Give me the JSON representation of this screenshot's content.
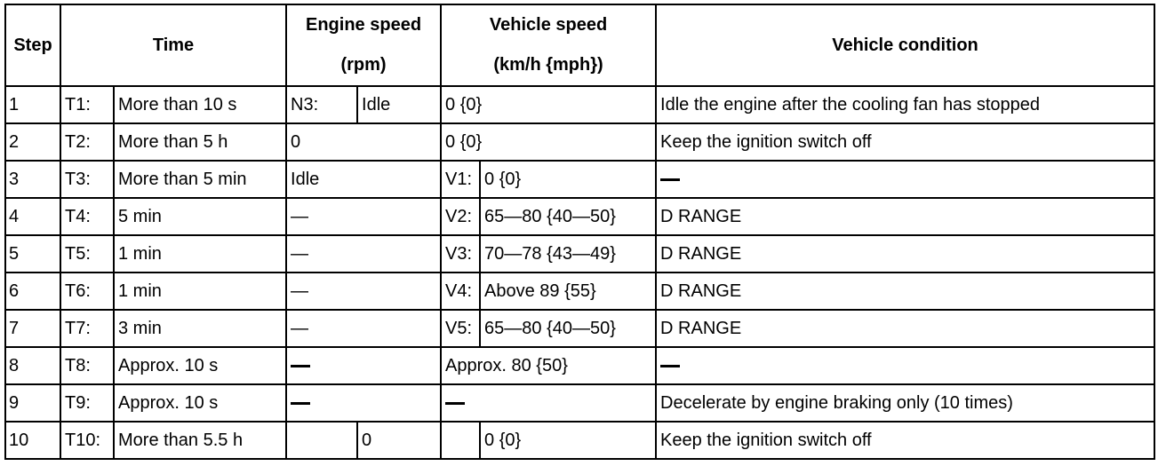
{
  "headers": {
    "step": "Step",
    "time": "Time",
    "engine_speed_line1": "Engine speed",
    "engine_speed_line2": "(rpm)",
    "vehicle_speed_line1": "Vehicle speed",
    "vehicle_speed_line2": "(km/h {mph})",
    "vehicle_condition": "Vehicle condition"
  },
  "em_dash": "—",
  "rows": [
    {
      "step": "1",
      "time_label": "T1:",
      "time_value": "More than 10 s",
      "engine_label": "N3:",
      "engine_value": "Idle",
      "vehicle_value": "0 {0}",
      "condition": "Idle the engine after the cooling fan has stopped"
    },
    {
      "step": "2",
      "time_label": "T2:",
      "time_value": "More than 5 h",
      "engine_value": "0",
      "vehicle_value": "0 {0}",
      "condition": "Keep the ignition switch off"
    },
    {
      "step": "3",
      "time_label": "T3:",
      "time_value": "More than 5 min",
      "engine_value": "Idle",
      "vehicle_label": "V1:",
      "vehicle_value": "0 {0}",
      "condition": "—"
    },
    {
      "step": "4",
      "time_label": "T4:",
      "time_value": "5 min",
      "engine_value": "—",
      "vehicle_label": "V2:",
      "vehicle_value": "65—80 {40—50}",
      "condition": "D RANGE"
    },
    {
      "step": "5",
      "time_label": "T5:",
      "time_value": "1 min",
      "engine_value": "—",
      "vehicle_label": "V3:",
      "vehicle_value": "70—78 {43—49}",
      "condition": "D RANGE"
    },
    {
      "step": "6",
      "time_label": "T6:",
      "time_value": "1 min",
      "engine_value": "—",
      "vehicle_label": "V4:",
      "vehicle_value": "Above 89 {55}",
      "condition": "D RANGE"
    },
    {
      "step": "7",
      "time_label": "T7:",
      "time_value": "3 min",
      "engine_value": "—",
      "vehicle_label": "V5:",
      "vehicle_value": "65—80 {40—50}",
      "condition": "D RANGE"
    },
    {
      "step": "8",
      "time_label": "T8:",
      "time_value": "Approx. 10 s",
      "engine_value": "—",
      "vehicle_value": "Approx. 80 {50}",
      "condition": "—"
    },
    {
      "step": "9",
      "time_label": "T9:",
      "time_value": "Approx. 10 s",
      "engine_value": "—",
      "vehicle_value": "—",
      "condition": "Decelerate by engine braking only (10 times)"
    },
    {
      "step": "10",
      "time_label": "T10:",
      "time_value": "More than 5.5 h",
      "engine_label": "",
      "engine_value": "0",
      "vehicle_label": "",
      "vehicle_value": "0 {0}",
      "condition": "Keep the ignition switch off"
    }
  ]
}
